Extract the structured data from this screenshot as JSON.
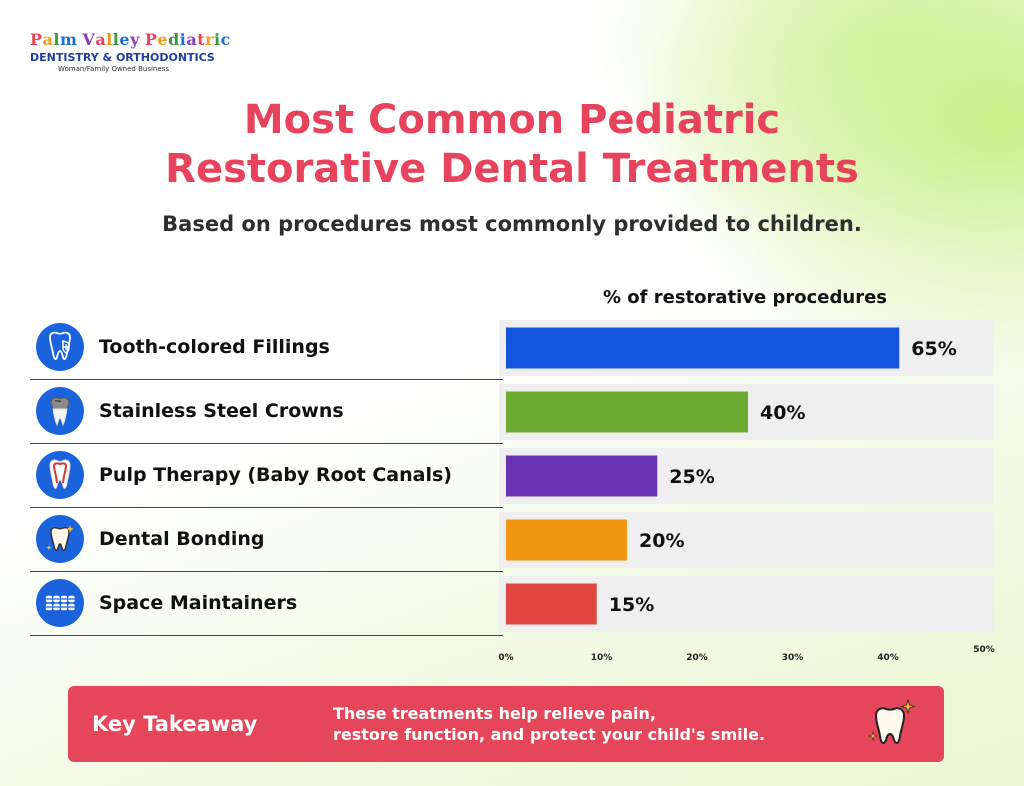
{
  "logo": {
    "name": "Palm Valley Pediatric",
    "subtitle": "DENTISTRY & ORTHODONTICS",
    "tagline": "Woman/Family Owned Business",
    "letter_colors": [
      "#e8435c",
      "#f39a1e",
      "#3a9a3c",
      "#1f6fd1",
      "#8a3fb5",
      "#e8435c",
      "#f39a1e",
      "#3a9a3c",
      "#1f6fd1",
      "#8a3fb5",
      "#e8435c",
      "#f39a1e",
      "#3a9a3c",
      "#1f6fd1",
      "#8a3fb5",
      "#e8435c",
      "#f39a1e",
      "#3a9a3c",
      "#1f6fd1",
      "#8a3fb5",
      "#e8435c"
    ]
  },
  "title_line1": "Most Common Pediatric",
  "title_line2": "Restorative Dental Treatments",
  "subtitle": "Based on procedures most commonly provided to children.",
  "rows": [
    {
      "label": "Tooth-colored Fillings",
      "icon": "tooth-shield-icon"
    },
    {
      "label": "Stainless Steel Crowns",
      "icon": "tooth-crown-icon"
    },
    {
      "label": "Pulp Therapy (Baby Root Canals)",
      "icon": "tooth-root-icon"
    },
    {
      "label": "Dental Bonding",
      "icon": "sparkle-tooth-icon"
    },
    {
      "label": "Space Maintainers",
      "icon": "braces-icon"
    }
  ],
  "takeaway": {
    "title": "Key Takeaway",
    "line1": "These treatments help relieve pain,",
    "line2": "restore function, and protect your child's smile.",
    "icon": "sparkle-tooth-icon"
  },
  "colors": {
    "title": "#e8435c",
    "icon_circle": "#1b63dc",
    "takeaway_bg": "#e64659",
    "track": "#efefef"
  },
  "chart_data": {
    "type": "bar",
    "orientation": "horizontal",
    "xlabel": "% of restorative procedures",
    "categories": [
      "Tooth-colored Fillings",
      "Stainless Steel Crowns",
      "Pulp Therapy (Baby Root Canals)",
      "Dental Bonding",
      "Space Maintainers"
    ],
    "values": [
      65,
      40,
      25,
      20,
      15
    ],
    "value_labels": [
      "65%",
      "40%",
      "25%",
      "20%",
      "15%"
    ],
    "bar_colors": [
      "#1456e0",
      "#6aaa30",
      "#6933b3",
      "#f29611",
      "#e0463f"
    ],
    "xticks": [
      0,
      10,
      20,
      30,
      40,
      50
    ],
    "xtick_labels": [
      "0%",
      "10%",
      "20%",
      "30%",
      "40%",
      "50%"
    ],
    "xlim": [
      0,
      50
    ],
    "grid": false
  }
}
